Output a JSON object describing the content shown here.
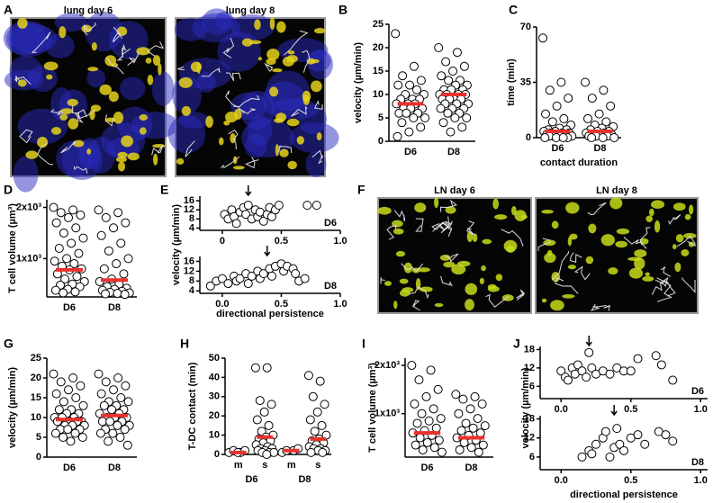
{
  "images": [
    {
      "panel": "A",
      "labels": [
        "lung day 6",
        "lung day 8"
      ]
    },
    {
      "panel": "F",
      "labels": [
        "LN day 6",
        "LN day 8"
      ]
    }
  ],
  "chart_data": [
    {
      "panel": "B",
      "type": "dotplot",
      "ylabel": "velocity (µm/min)",
      "categories": [
        "D6",
        "D8"
      ],
      "ylim": [
        0,
        25
      ],
      "yticks": [
        0,
        5,
        10,
        15,
        20,
        25
      ],
      "median_color": "#e8322e",
      "values": [
        [
          23,
          16,
          14,
          13,
          12,
          12,
          11,
          10,
          10,
          9,
          9,
          9,
          8,
          8,
          8,
          7,
          7,
          7,
          6,
          6,
          6,
          5,
          5,
          4,
          3,
          2,
          1
        ],
        [
          20,
          19,
          17,
          16,
          15,
          14,
          13,
          13,
          12,
          12,
          11,
          11,
          11,
          10,
          10,
          10,
          10,
          9,
          9,
          9,
          9,
          8,
          8,
          8,
          7,
          7,
          7,
          6,
          6,
          5,
          5,
          4,
          3,
          2
        ]
      ],
      "medians": [
        8,
        10
      ]
    },
    {
      "panel": "C",
      "type": "dotplot",
      "ylabel": "time (min)",
      "xlabel": "contact duration",
      "categories": [
        "D6",
        "D8"
      ],
      "ylim": [
        0,
        70
      ],
      "yticks": [
        0,
        35,
        70
      ],
      "median_color": "#e8322e",
      "values": [
        [
          63,
          35,
          30,
          25,
          20,
          15,
          12,
          10,
          8,
          6,
          5,
          5,
          4,
          4,
          3,
          3,
          3,
          2,
          2,
          2,
          1,
          1,
          1,
          1,
          0,
          0,
          0,
          0
        ],
        [
          35,
          30,
          25,
          20,
          15,
          12,
          10,
          8,
          7,
          6,
          5,
          4,
          4,
          3,
          3,
          2,
          2,
          2,
          1,
          1,
          1,
          0,
          0,
          0
        ]
      ],
      "medians": [
        4,
        4
      ]
    },
    {
      "panel": "D",
      "type": "dotplot",
      "ylabel": "T cell volume (µm³)",
      "categories": [
        "D6",
        "D8"
      ],
      "ylim": [
        250,
        2150
      ],
      "yticks": [
        {
          "value": 1000,
          "label": "1x10³"
        },
        {
          "value": 2000,
          "label": "2x10³"
        }
      ],
      "median_color": "#e8322e",
      "values": [
        [
          2000,
          1950,
          1900,
          1850,
          1800,
          1700,
          1600,
          1500,
          1400,
          1300,
          1200,
          1100,
          1000,
          950,
          900,
          850,
          800,
          780,
          700,
          650,
          600,
          550,
          500,
          480,
          450,
          400,
          380,
          350,
          330
        ],
        [
          1950,
          1900,
          1800,
          1700,
          1600,
          1450,
          1300,
          1150,
          1000,
          900,
          800,
          700,
          600,
          550,
          500,
          450,
          420,
          400,
          380,
          360,
          340,
          330,
          320,
          310,
          300
        ]
      ],
      "medians": [
        780,
        580
      ]
    },
    {
      "panel": "E",
      "type": "scatter",
      "ylabel": "velocity (µm/min)",
      "xlabel": "directional persistence",
      "color": "#ffffff",
      "subplots": [
        {
          "label": "D6",
          "xlim": [
            -0.19,
            1.0
          ],
          "ylim": [
            3,
            18
          ],
          "xticks": [
            0,
            0.5,
            {
              "value": 1,
              "label": "1.0"
            }
          ],
          "yticks": [
            4,
            8,
            12,
            16
          ],
          "arrow": 0.22,
          "x": [
            0.02,
            0.05,
            0.08,
            0.1,
            0.12,
            0.15,
            0.18,
            0.2,
            0.22,
            0.25,
            0.28,
            0.3,
            0.32,
            0.35,
            0.38,
            0.4,
            0.42,
            0.45,
            0.48,
            0.72,
            0.8
          ],
          "y": [
            10,
            8,
            12,
            9,
            6,
            11,
            13,
            10,
            14,
            8,
            12,
            9,
            11,
            7,
            10,
            13,
            9,
            12,
            14,
            14,
            14
          ]
        },
        {
          "label": "D8",
          "xlim": [
            -0.19,
            1.0
          ],
          "ylim": [
            3,
            18
          ],
          "xticks": [
            {
              "value": 0,
              "label": "0.0"
            },
            0.5,
            {
              "value": 1,
              "label": "1.0"
            }
          ],
          "yticks": [
            4,
            8,
            12,
            16
          ],
          "arrow": 0.38,
          "x": [
            -0.1,
            -0.05,
            0,
            0.05,
            0.1,
            0.12,
            0.15,
            0.2,
            0.22,
            0.25,
            0.3,
            0.32,
            0.35,
            0.4,
            0.42,
            0.45,
            0.5,
            0.52,
            0.55,
            0.6,
            0.62,
            0.65,
            0.7
          ],
          "y": [
            6,
            8,
            9,
            7,
            10,
            8,
            9,
            11,
            7,
            10,
            12,
            9,
            11,
            13,
            10,
            14,
            15,
            12,
            14,
            13,
            11,
            8,
            9
          ]
        }
      ]
    },
    {
      "panel": "G",
      "type": "dotplot",
      "ylabel": "velocity (µm/min)",
      "categories": [
        "D6",
        "D8"
      ],
      "ylim": [
        0,
        25
      ],
      "yticks": [
        0,
        5,
        10,
        15,
        20,
        25
      ],
      "median_color": "#e8322e",
      "values": [
        [
          21,
          20,
          19,
          18,
          17,
          16,
          15,
          14,
          13,
          12,
          12,
          11,
          11,
          10,
          10,
          10,
          9,
          9,
          9,
          9,
          8,
          8,
          8,
          7,
          7,
          7,
          6,
          6,
          5,
          5,
          4
        ],
        [
          21,
          20,
          19,
          18,
          17,
          16,
          15,
          14,
          14,
          13,
          13,
          12,
          12,
          11,
          11,
          10,
          10,
          10,
          9,
          9,
          9,
          8,
          8,
          7,
          7,
          6,
          6,
          5,
          4,
          3
        ]
      ],
      "medians": [
        9.5,
        10.5
      ]
    },
    {
      "panel": "H",
      "type": "dotplot",
      "ylabel": "T-DC contact (min)",
      "categories": [
        "m",
        "s",
        "m",
        "s"
      ],
      "groups": [
        "D6",
        "D8"
      ],
      "ylim": [
        0,
        50
      ],
      "yticks": [
        0,
        10,
        20,
        30,
        40,
        50
      ],
      "median_color": "#e8322e",
      "values": [
        [
          1,
          1,
          2,
          2,
          1
        ],
        [
          45,
          45,
          28,
          26,
          22,
          18,
          15,
          12,
          10,
          9,
          8,
          7,
          6,
          5,
          4,
          3,
          3,
          2,
          2,
          1,
          1,
          1,
          0
        ],
        [
          1,
          2,
          2,
          3
        ],
        [
          41,
          38,
          30,
          26,
          22,
          18,
          15,
          12,
          10,
          8,
          7,
          6,
          5,
          4,
          3,
          3,
          2,
          2,
          1,
          1
        ]
      ],
      "medians": [
        1,
        9,
        2,
        8
      ]
    },
    {
      "panel": "I",
      "type": "dotplot",
      "ylabel": "T cell volume (µm³)",
      "categories": [
        "D6",
        "D8"
      ],
      "ylim": [
        100,
        2150
      ],
      "yticks": [
        {
          "value": 1000,
          "label": "1x10³"
        },
        {
          "value": 2000,
          "label": "2x10³"
        }
      ],
      "median_color": "#e8322e",
      "values": [
        [
          2000,
          1900,
          1700,
          1500,
          1350,
          1200,
          1100,
          1000,
          900,
          850,
          800,
          700,
          650,
          600,
          550,
          500,
          450,
          400,
          350,
          300,
          250,
          200
        ],
        [
          1400,
          1350,
          1300,
          1200,
          1100,
          1000,
          900,
          800,
          750,
          700,
          650,
          600,
          550,
          500,
          450,
          400,
          350,
          300,
          250,
          200
        ]
      ],
      "medians": [
        600,
        500
      ]
    },
    {
      "panel": "J",
      "type": "scatter",
      "ylabel": "velocity (µm/min)",
      "xlabel": "directional persistence",
      "color": "#ffffff",
      "subplots": [
        {
          "label": "D6",
          "xlim": [
            -0.15,
            1.05
          ],
          "ylim": [
            2,
            19
          ],
          "xticks": [
            {
              "value": 0,
              "label": "0.0"
            },
            0.5,
            {
              "value": 1,
              "label": "1.0"
            }
          ],
          "yticks": [
            6,
            12,
            18
          ],
          "arrow": 0.2,
          "x": [
            0,
            0.03,
            0.05,
            0.08,
            0.1,
            0.12,
            0.15,
            0.18,
            0.2,
            0.22,
            0.25,
            0.3,
            0.35,
            0.4,
            0.45,
            0.5,
            0.55,
            0.68,
            0.72,
            0.8
          ],
          "y": [
            11,
            9,
            8,
            12,
            10,
            13,
            11,
            9,
            17,
            12,
            10,
            11,
            10,
            12,
            11,
            11,
            15,
            16,
            13,
            8
          ]
        },
        {
          "label": "D8",
          "xlim": [
            -0.15,
            1.05
          ],
          "ylim": [
            2,
            19
          ],
          "xticks": [
            {
              "value": 0,
              "label": "0.0"
            },
            0.5,
            {
              "value": 1,
              "label": "1.0"
            }
          ],
          "yticks": [
            6,
            12,
            18
          ],
          "arrow": 0.38,
          "x": [
            0.15,
            0.2,
            0.22,
            0.25,
            0.3,
            0.32,
            0.35,
            0.38,
            0.4,
            0.42,
            0.45,
            0.5,
            0.55,
            0.6,
            0.7,
            0.75,
            0.8
          ],
          "y": [
            6,
            8,
            7,
            10,
            12,
            14,
            6,
            9,
            15,
            10,
            8,
            12,
            13,
            10,
            14,
            13,
            11
          ]
        }
      ]
    }
  ]
}
